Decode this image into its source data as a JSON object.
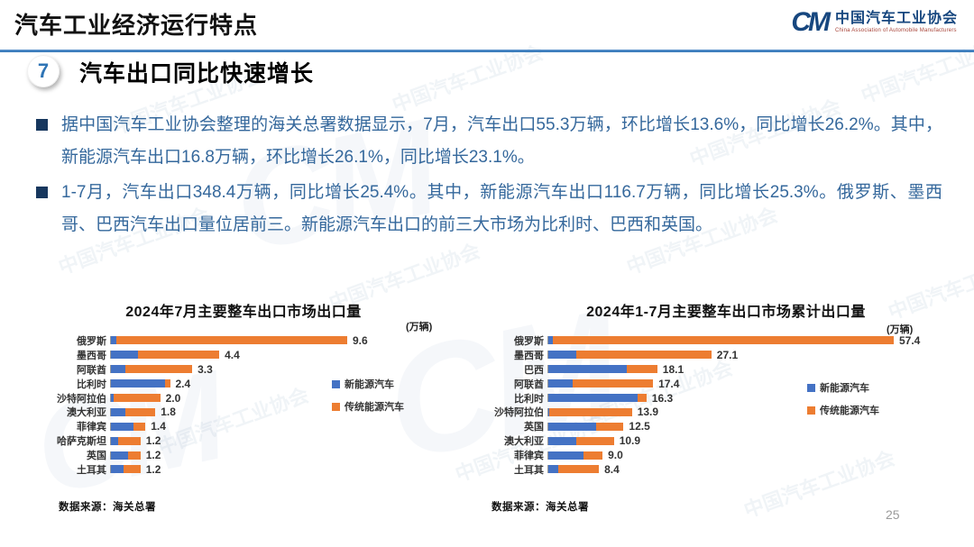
{
  "slide": {
    "title": "汽车工业经济运行特点",
    "section_number": "7",
    "section_title": "汽车出口同比快速增长",
    "bullets": [
      "据中国汽车工业协会整理的海关总署数据显示，7月，汽车出口55.3万辆，环比增长13.6%，同比增长26.2%。其中，新能源汽车出口16.8万辆，环比增长26.1%，同比增长23.1%。",
      "1-7月，汽车出口348.4万辆，同比增长25.4%。其中，新能源汽车出口116.7万辆，同比增长25.3%。俄罗斯、墨西哥、巴西汽车出口量位居前三。新能源汽车出口的前三大市场为比利时、巴西和英国。"
    ],
    "page_number": "25"
  },
  "logo": {
    "monogram": "CM",
    "org_name_cn": "中国汽车工业协会",
    "org_name_en": "China Association of Automobile Manufacturers"
  },
  "watermark": {
    "text": "中国汽车工业协会",
    "monogram": "CM"
  },
  "colors": {
    "nev_blue": "#4472C4",
    "traditional_orange": "#ED7D31",
    "accent_blue": "#2E74B5",
    "bullet_navy": "#17375E",
    "body_text_blue": "#35689C"
  },
  "chart_data": [
    {
      "type": "bar",
      "orientation": "horizontal",
      "stacked": true,
      "title": "2024年7月主要整车出口市场出口量",
      "unit_label": "(万辆)",
      "source": "数据来源：海关总署",
      "legend": [
        "新能源汽车",
        "传统能源汽车"
      ],
      "legend_position": "right",
      "categories": [
        "俄罗斯",
        "墨西哥",
        "阿联酋",
        "比利时",
        "沙特阿拉伯",
        "澳大利亚",
        "菲律宾",
        "哈萨克斯坦",
        "英国",
        "土耳其"
      ],
      "totals": [
        "9.6",
        "4.4",
        "3.3",
        "2.4",
        "2.0",
        "1.8",
        "1.4",
        "1.2",
        "1.2",
        "1.2"
      ],
      "series": [
        {
          "name": "新能源汽车",
          "color": "#4472C4",
          "values": [
            0.2,
            1.1,
            0.6,
            2.2,
            0.1,
            0.6,
            0.9,
            0.3,
            0.7,
            0.5
          ]
        },
        {
          "name": "传统能源汽车",
          "color": "#ED7D31",
          "values": [
            9.4,
            3.3,
            2.7,
            0.2,
            1.9,
            1.2,
            0.5,
            0.9,
            0.5,
            0.7
          ]
        }
      ],
      "xmax": 9.6
    },
    {
      "type": "bar",
      "orientation": "horizontal",
      "stacked": true,
      "title": "2024年1-7月主要整车出口市场累计出口量",
      "unit_label": "(万辆)",
      "source": "数据来源：海关总署",
      "legend": [
        "新能源汽车",
        "传统能源汽车"
      ],
      "legend_position": "right",
      "categories": [
        "俄罗斯",
        "墨西哥",
        "巴西",
        "阿联酋",
        "比利时",
        "沙特阿拉伯",
        "英国",
        "澳大利亚",
        "菲律宾",
        "土耳其"
      ],
      "totals": [
        "57.4",
        "27.1",
        "18.1",
        "17.4",
        "16.3",
        "13.9",
        "12.5",
        "10.9",
        "9.0",
        "8.4"
      ],
      "series": [
        {
          "name": "新能源汽车",
          "color": "#4472C4",
          "values": [
            0.8,
            4.6,
            13.1,
            4.0,
            14.8,
            0.2,
            8.0,
            4.6,
            5.9,
            1.6
          ]
        },
        {
          "name": "传统能源汽车",
          "color": "#ED7D31",
          "values": [
            56.6,
            22.5,
            5.0,
            13.4,
            1.5,
            13.7,
            4.5,
            6.3,
            3.1,
            6.8
          ]
        }
      ],
      "xmax": 57.4
    }
  ]
}
